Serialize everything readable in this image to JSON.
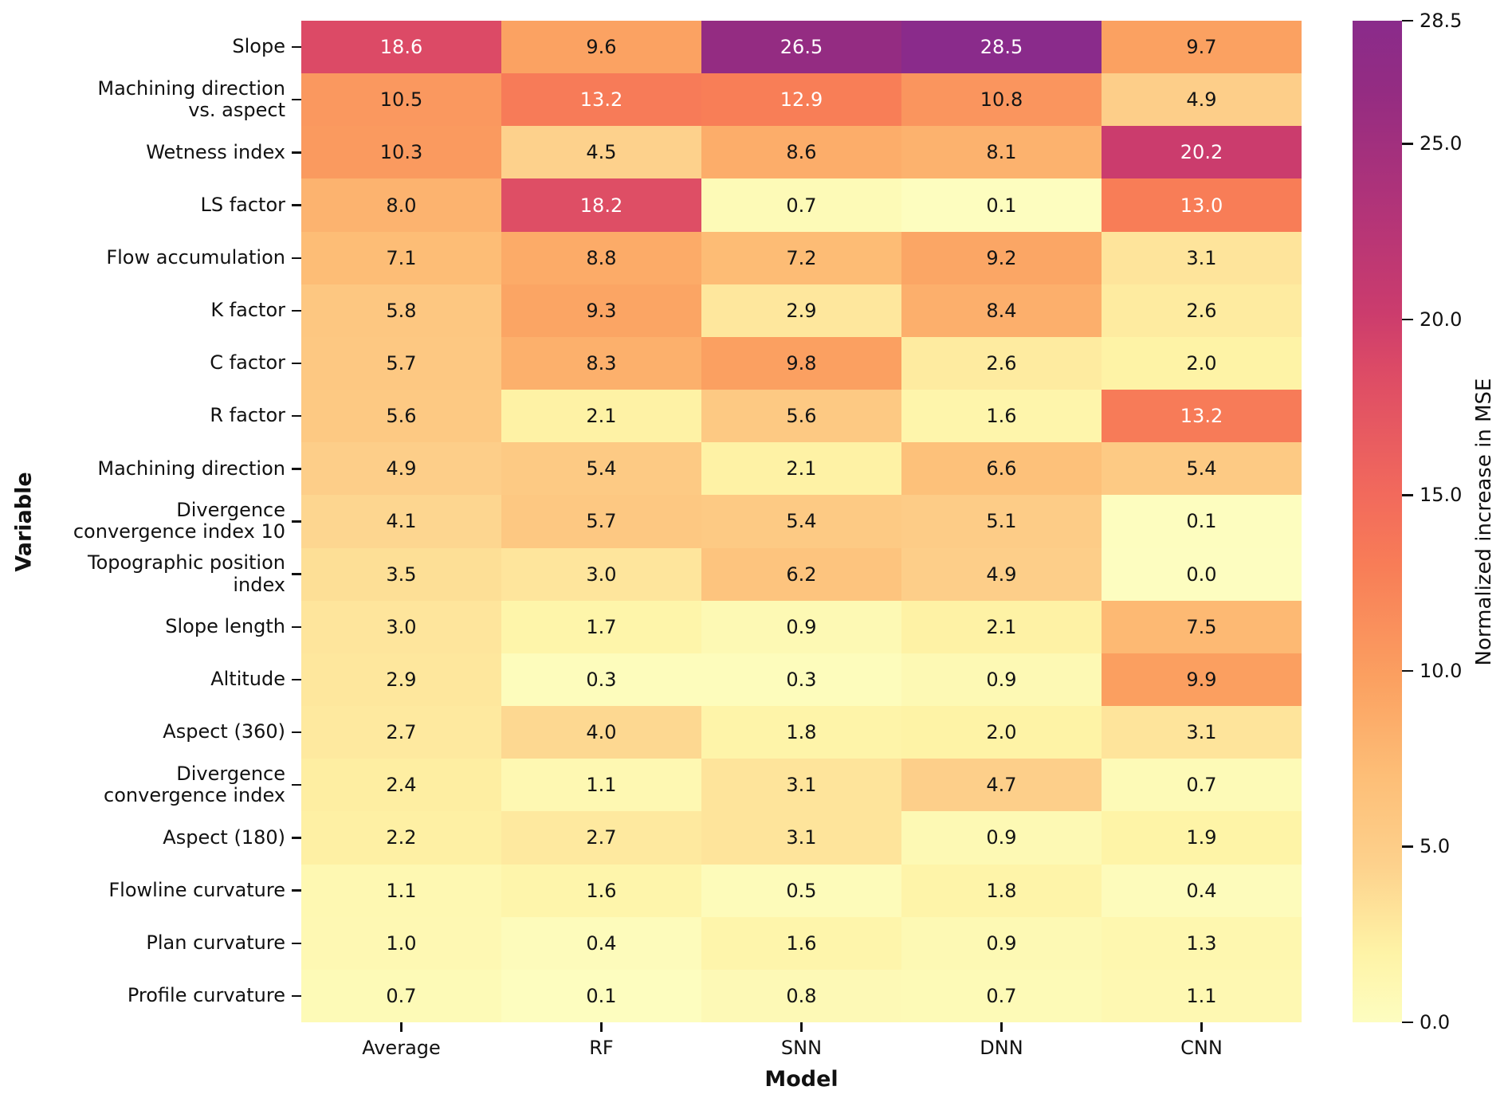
{
  "chart_data": {
    "type": "heatmap",
    "xlabel": "Model",
    "ylabel": "Variable",
    "colorbar": {
      "label": "Normalized increase in MSE",
      "vmin": 0,
      "vmax": 28.5,
      "ticks": [
        {
          "value": 0.0,
          "label": "0.0"
        },
        {
          "value": 5.0,
          "label": "5.0"
        },
        {
          "value": 10.0,
          "label": "10.0"
        },
        {
          "value": 15.0,
          "label": "15.0"
        },
        {
          "value": 20.0,
          "label": "20.0"
        },
        {
          "value": 25.0,
          "label": "25.0"
        },
        {
          "value": 28.5,
          "label": "28.5"
        }
      ]
    },
    "colormap_stops": [
      {
        "value": 0,
        "color": "#fdfdc0"
      },
      {
        "value": 2,
        "color": "#fef3a6"
      },
      {
        "value": 4.5,
        "color": "#fdd18c"
      },
      {
        "value": 7,
        "color": "#fdbe77"
      },
      {
        "value": 9.7,
        "color": "#fba161"
      },
      {
        "value": 13,
        "color": "#f87d57"
      },
      {
        "value": 15,
        "color": "#f26a5c"
      },
      {
        "value": 18.6,
        "color": "#dc4a66"
      },
      {
        "value": 20.2,
        "color": "#cb3c6d"
      },
      {
        "value": 23,
        "color": "#b33478"
      },
      {
        "value": 26.5,
        "color": "#942c82"
      },
      {
        "value": 28.5,
        "color": "#8a2b8b"
      }
    ],
    "columns": [
      "Average",
      "RF",
      "SNN",
      "DNN",
      "CNN"
    ],
    "rows": [
      "Slope",
      "Machining direction\nvs. aspect",
      "Wetness index",
      "LS factor",
      "Flow accumulation",
      "K factor",
      "C factor",
      "R factor",
      "Machining direction",
      "Divergence\nconvergence index 10",
      "Topographic position\nindex",
      "Slope length",
      "Altitude",
      "Aspect (360)",
      "Divergence\nconvergence index",
      "Aspect (180)",
      "Flowline curvature",
      "Plan curvature",
      "Profile curvature"
    ],
    "values": [
      [
        18.6,
        9.6,
        26.5,
        28.5,
        9.7
      ],
      [
        10.5,
        13.2,
        12.9,
        10.8,
        4.9
      ],
      [
        10.3,
        4.5,
        8.6,
        8.1,
        20.2
      ],
      [
        8.0,
        18.2,
        0.7,
        0.1,
        13.0
      ],
      [
        7.1,
        8.8,
        7.2,
        9.2,
        3.1
      ],
      [
        5.8,
        9.3,
        2.9,
        8.4,
        2.6
      ],
      [
        5.7,
        8.3,
        9.8,
        2.6,
        2.0
      ],
      [
        5.6,
        2.1,
        5.6,
        1.6,
        13.2
      ],
      [
        4.9,
        5.4,
        2.1,
        6.6,
        5.4
      ],
      [
        4.1,
        5.7,
        5.4,
        5.1,
        0.1
      ],
      [
        3.5,
        3.0,
        6.2,
        4.9,
        0.0
      ],
      [
        3.0,
        1.7,
        0.9,
        2.1,
        7.5
      ],
      [
        2.9,
        0.3,
        0.3,
        0.9,
        9.9
      ],
      [
        2.7,
        4.0,
        1.8,
        2.0,
        3.1
      ],
      [
        2.4,
        1.1,
        3.1,
        4.7,
        0.7
      ],
      [
        2.2,
        2.7,
        3.1,
        0.9,
        1.9
      ],
      [
        1.1,
        1.6,
        0.5,
        1.8,
        0.4
      ],
      [
        1.0,
        0.4,
        1.6,
        0.9,
        1.3
      ],
      [
        0.7,
        0.1,
        0.8,
        0.7,
        1.1
      ]
    ]
  }
}
